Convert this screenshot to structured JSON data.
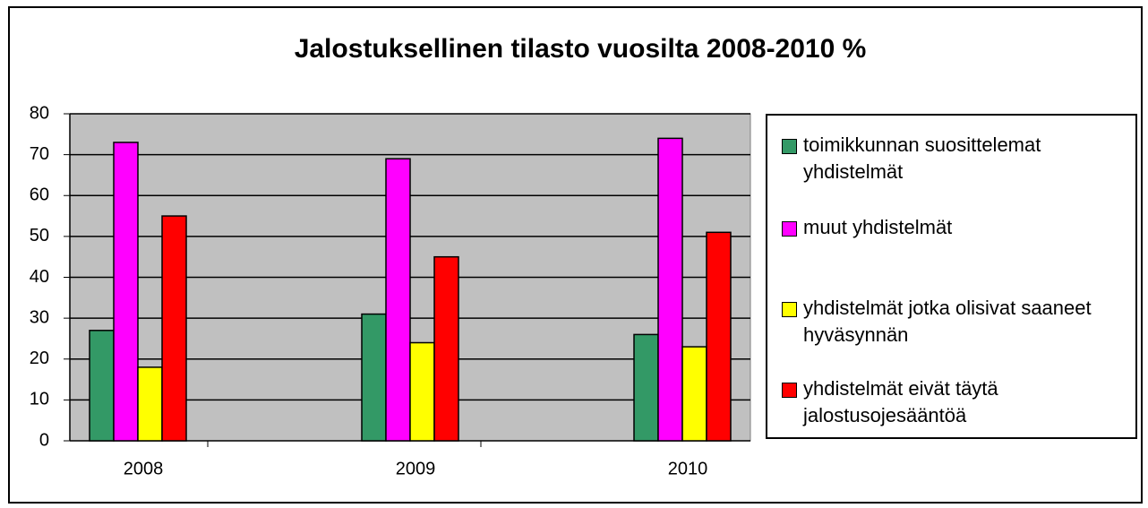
{
  "chart_data": {
    "type": "bar",
    "title": "Jalostuksellinen tilasto vuosilta 2008-2010 %",
    "categories": [
      "2008",
      "2009",
      "2010"
    ],
    "series": [
      {
        "name": "toimikkunnan suosittelemat yhdistelmät",
        "color": "#339966",
        "values": [
          27,
          31,
          26
        ]
      },
      {
        "name": "muut yhdistelmät",
        "color": "#ff00ff",
        "values": [
          73,
          69,
          74
        ]
      },
      {
        "name": "yhdistelmät jotka olisivat saaneet hyväsynnän",
        "color": "#ffff00",
        "values": [
          18,
          24,
          23
        ]
      },
      {
        "name": "yhdistelmät eivät täytä jalostusojesääntöä",
        "color": "#ff0000",
        "values": [
          55,
          45,
          51
        ]
      }
    ],
    "ylim": [
      0,
      80
    ],
    "yticks": [
      0,
      10,
      20,
      30,
      40,
      50,
      60,
      70,
      80
    ],
    "grid": true,
    "legend": "right"
  }
}
